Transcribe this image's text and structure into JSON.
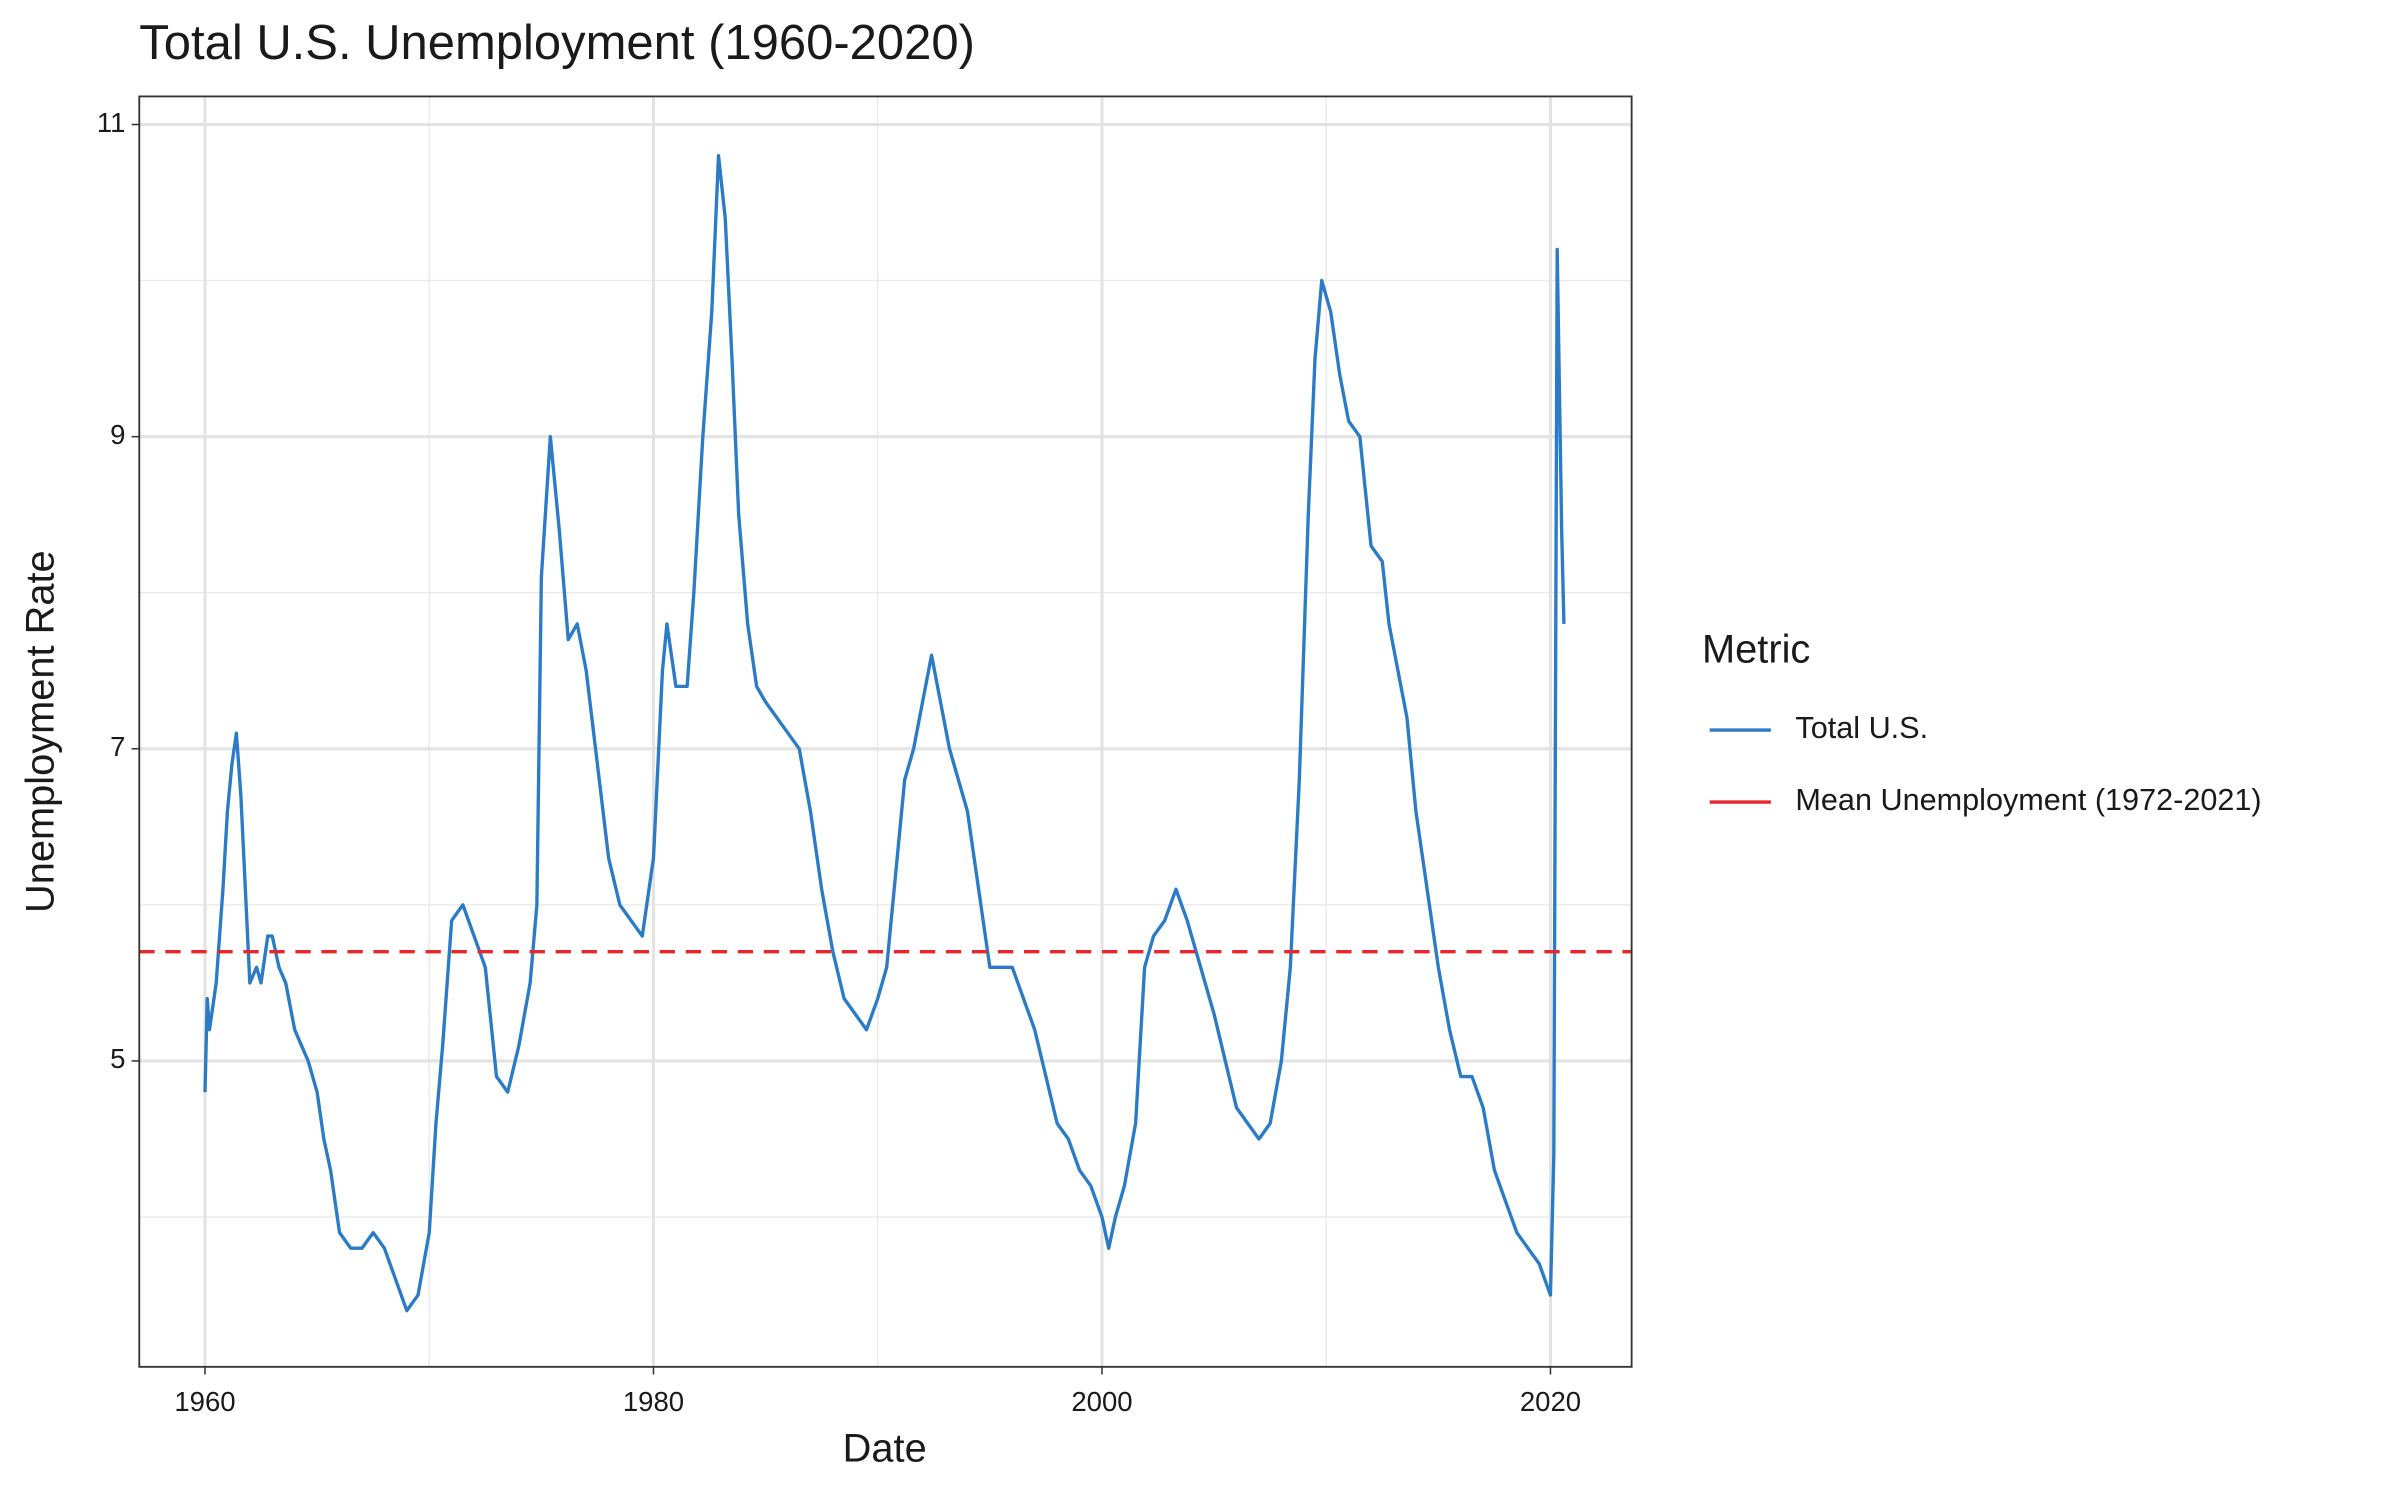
{
  "chart_data": {
    "type": "line",
    "title": "Total U.S. Unemployment (1960-2020)",
    "x_label": "Date",
    "y_label": "Unemployment Rate",
    "x": [
      1960.0,
      1960.1,
      1960.2,
      1960.5,
      1960.8,
      1961.0,
      1961.2,
      1961.4,
      1961.6,
      1961.8,
      1962.0,
      1962.3,
      1962.5,
      1962.8,
      1963.0,
      1963.3,
      1963.6,
      1964.0,
      1964.3,
      1964.6,
      1965.0,
      1965.3,
      1965.6,
      1966.0,
      1966.5,
      1967.0,
      1967.5,
      1968.0,
      1968.5,
      1969.0,
      1969.5,
      1970.0,
      1970.3,
      1970.6,
      1971.0,
      1971.5,
      1972.0,
      1972.5,
      1973.0,
      1973.5,
      1974.0,
      1974.5,
      1974.8,
      1975.0,
      1975.4,
      1975.8,
      1976.2,
      1976.6,
      1977.0,
      1977.5,
      1978.0,
      1978.5,
      1979.0,
      1979.5,
      1980.0,
      1980.4,
      1980.6,
      1981.0,
      1981.5,
      1981.8,
      1982.2,
      1982.6,
      1982.9,
      1983.2,
      1983.5,
      1983.8,
      1984.2,
      1984.6,
      1985.0,
      1985.5,
      1986.0,
      1986.5,
      1987.0,
      1987.5,
      1988.0,
      1988.5,
      1989.0,
      1989.5,
      1990.0,
      1990.4,
      1990.8,
      1991.2,
      1991.6,
      1992.0,
      1992.4,
      1992.8,
      1993.2,
      1993.6,
      1994.0,
      1994.5,
      1995.0,
      1995.5,
      1996.0,
      1996.5,
      1997.0,
      1997.5,
      1998.0,
      1998.5,
      1999.0,
      1999.5,
      2000.0,
      2000.3,
      2000.6,
      2001.0,
      2001.5,
      2001.9,
      2002.3,
      2002.8,
      2003.3,
      2003.8,
      2004.2,
      2004.6,
      2005.0,
      2005.5,
      2006.0,
      2006.5,
      2007.0,
      2007.5,
      2008.0,
      2008.4,
      2008.8,
      2009.2,
      2009.5,
      2009.8,
      2010.2,
      2010.6,
      2011.0,
      2011.5,
      2012.0,
      2012.5,
      2012.8,
      2013.2,
      2013.6,
      2014.0,
      2014.5,
      2015.0,
      2015.5,
      2016.0,
      2016.5,
      2017.0,
      2017.5,
      2018.0,
      2018.5,
      2019.0,
      2019.5,
      2020.0,
      2020.15,
      2020.3,
      2020.5,
      2020.6
    ],
    "series": [
      {
        "name": "Total U.S.",
        "color": "#2b7bc6",
        "values": [
          4.8,
          5.4,
          5.2,
          5.5,
          6.1,
          6.6,
          6.9,
          7.1,
          6.7,
          6.1,
          5.5,
          5.6,
          5.5,
          5.8,
          5.8,
          5.6,
          5.5,
          5.2,
          5.1,
          5.0,
          4.8,
          4.5,
          4.3,
          3.9,
          3.8,
          3.8,
          3.9,
          3.8,
          3.6,
          3.4,
          3.5,
          3.9,
          4.6,
          5.1,
          5.9,
          6.0,
          5.8,
          5.6,
          4.9,
          4.8,
          5.1,
          5.5,
          6.0,
          8.1,
          9.0,
          8.4,
          7.7,
          7.8,
          7.5,
          6.9,
          6.3,
          6.0,
          5.9,
          5.8,
          6.3,
          7.5,
          7.8,
          7.4,
          7.4,
          8.0,
          9.0,
          9.8,
          10.8,
          10.4,
          9.5,
          8.5,
          7.8,
          7.4,
          7.3,
          7.2,
          7.1,
          7.0,
          6.6,
          6.1,
          5.7,
          5.4,
          5.3,
          5.2,
          5.4,
          5.6,
          6.2,
          6.8,
          7.0,
          7.3,
          7.6,
          7.3,
          7.0,
          6.8,
          6.6,
          6.1,
          5.6,
          5.6,
          5.6,
          5.4,
          5.2,
          4.9,
          4.6,
          4.5,
          4.3,
          4.2,
          4.0,
          3.8,
          4.0,
          4.2,
          4.6,
          5.6,
          5.8,
          5.9,
          6.1,
          5.9,
          5.7,
          5.5,
          5.3,
          5.0,
          4.7,
          4.6,
          4.5,
          4.6,
          5.0,
          5.6,
          6.8,
          8.5,
          9.5,
          10.0,
          9.8,
          9.4,
          9.1,
          9.0,
          8.3,
          8.2,
          7.8,
          7.5,
          7.2,
          6.6,
          6.1,
          5.6,
          5.2,
          4.9,
          4.9,
          4.7,
          4.3,
          4.1,
          3.9,
          3.8,
          3.7,
          3.5,
          4.4,
          10.2,
          8.4,
          7.8
        ]
      }
    ],
    "hlines": [
      {
        "name": "Mean Unemployment (1972-2021)",
        "color": "#e8262b",
        "value": 5.7,
        "dashed": true
      }
    ],
    "xlim": [
      1957.07,
      2023.62
    ],
    "xticks": [
      1960,
      1980,
      2000,
      2020
    ],
    "x_minor_grid": [
      1970,
      1990,
      2010
    ],
    "ylim": [
      3.04,
      11.18
    ],
    "yticks": [
      5,
      7,
      9,
      11
    ],
    "y_minor_grid": [
      4,
      6,
      8,
      10
    ],
    "grid": true,
    "legend_title": "Metric",
    "legend_position": "right"
  }
}
